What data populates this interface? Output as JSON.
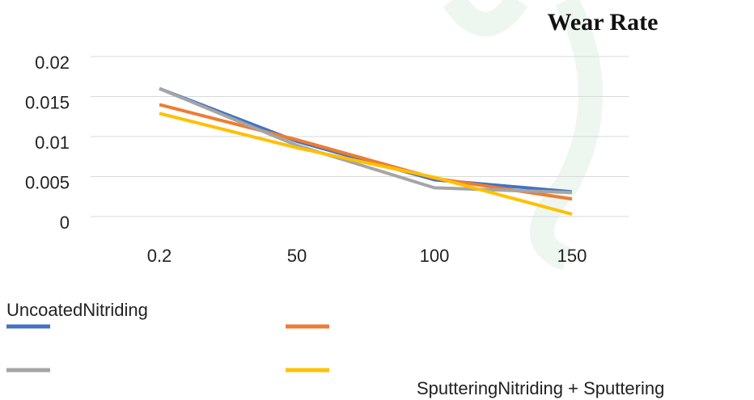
{
  "chart_data": {
    "type": "line",
    "title": "Wear Rate",
    "categories": [
      "0.2",
      "50",
      "100",
      "150"
    ],
    "series": [
      {
        "name": "Uncoated",
        "color": "#4472c4",
        "values": [
          0.016,
          0.0094,
          0.0046,
          0.0031
        ]
      },
      {
        "name": "Nitriding",
        "color": "#ed7d31",
        "values": [
          0.014,
          0.0096,
          0.0048,
          0.0022
        ]
      },
      {
        "name": "Sputtering",
        "color": "#a5a5a5",
        "values": [
          0.016,
          0.0089,
          0.0036,
          0.003
        ]
      },
      {
        "name": "Nitriding + Sputtering",
        "color": "#ffc000",
        "values": [
          0.0129,
          0.0086,
          0.0049,
          0.0003
        ]
      }
    ],
    "ylim": [
      0,
      0.02
    ],
    "yticks": [
      0,
      0.005,
      0.01,
      0.015,
      0.02
    ],
    "grid": true
  }
}
